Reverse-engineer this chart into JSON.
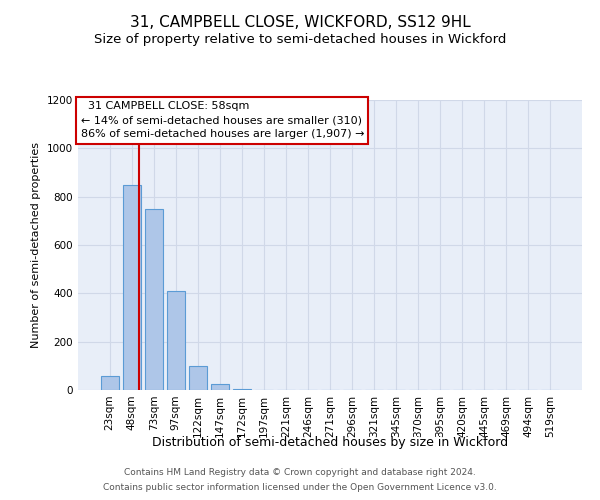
{
  "title": "31, CAMPBELL CLOSE, WICKFORD, SS12 9HL",
  "subtitle": "Size of property relative to semi-detached houses in Wickford",
  "xlabel": "Distribution of semi-detached houses by size in Wickford",
  "ylabel": "Number of semi-detached properties",
  "footer1": "Contains HM Land Registry data © Crown copyright and database right 2024.",
  "footer2": "Contains public sector information licensed under the Open Government Licence v3.0.",
  "categories": [
    "23sqm",
    "48sqm",
    "73sqm",
    "97sqm",
    "122sqm",
    "147sqm",
    "172sqm",
    "197sqm",
    "221sqm",
    "246sqm",
    "271sqm",
    "296sqm",
    "321sqm",
    "345sqm",
    "370sqm",
    "395sqm",
    "420sqm",
    "445sqm",
    "469sqm",
    "494sqm",
    "519sqm"
  ],
  "values": [
    60,
    850,
    750,
    410,
    100,
    25,
    5,
    1,
    0,
    0,
    0,
    0,
    0,
    0,
    0,
    0,
    0,
    0,
    0,
    0,
    0
  ],
  "bar_color": "#aec6e8",
  "bar_edge_color": "#5b9bd5",
  "grid_color": "#d0d8e8",
  "background_color": "#e8eef8",
  "annotation_text": "  31 CAMPBELL CLOSE: 58sqm\n← 14% of semi-detached houses are smaller (310)\n86% of semi-detached houses are larger (1,907) →",
  "vline_x": 1.35,
  "vline_color": "#cc0000",
  "annotation_box_color": "#cc0000",
  "ylim": [
    0,
    1200
  ],
  "yticks": [
    0,
    200,
    400,
    600,
    800,
    1000,
    1200
  ],
  "title_fontsize": 11,
  "subtitle_fontsize": 9.5,
  "xlabel_fontsize": 9,
  "ylabel_fontsize": 8,
  "tick_fontsize": 7.5,
  "annot_fontsize": 8
}
